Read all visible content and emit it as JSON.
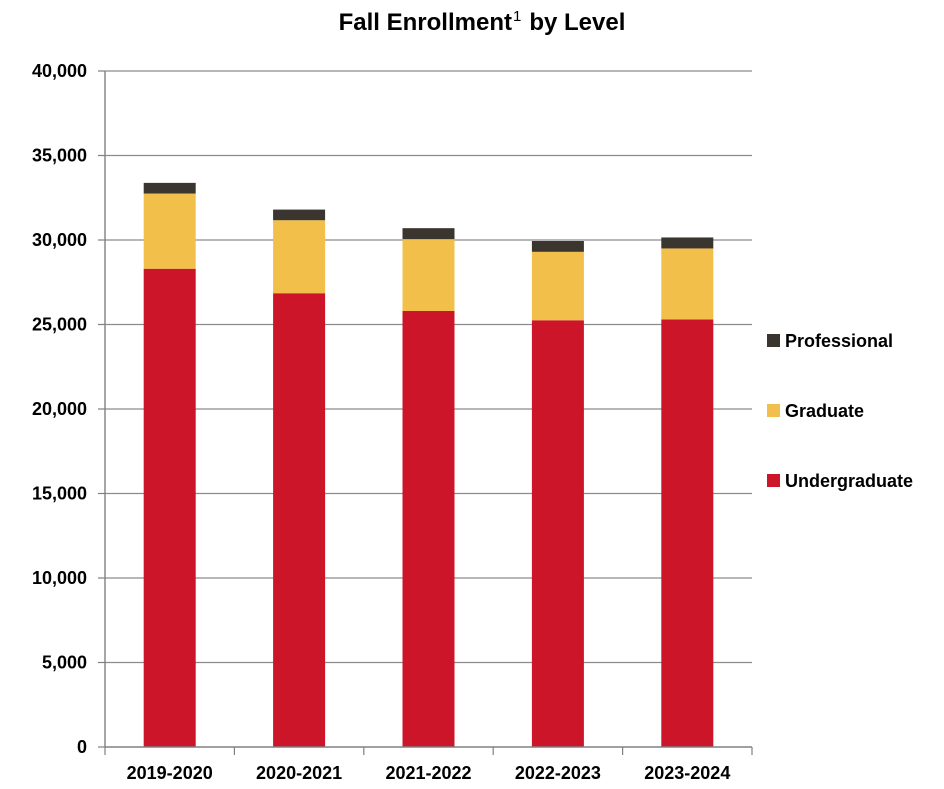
{
  "chart_data": {
    "type": "bar",
    "stacked": true,
    "title": "Fall Enrollment",
    "title_superscript": "1",
    "title_suffix": "by Level",
    "categories": [
      "2019-2020",
      "2020-2021",
      "2021-2022",
      "2022-2023",
      "2023-2024"
    ],
    "series": [
      {
        "name": "Undergraduate",
        "color": "#cc1528",
        "values": [
          28300,
          26850,
          25800,
          25250,
          25300
        ]
      },
      {
        "name": "Graduate",
        "color": "#f2c04a",
        "values": [
          4450,
          4320,
          4250,
          4050,
          4200
        ]
      },
      {
        "name": "Professional",
        "color": "#3b3530",
        "values": [
          630,
          630,
          650,
          640,
          650
        ]
      }
    ],
    "ylim": [
      0,
      40000
    ],
    "yticks": [
      "0",
      "5,000",
      "10,000",
      "15,000",
      "20,000",
      "25,000",
      "30,000",
      "35,000",
      "40,000"
    ],
    "grid": true,
    "legend": "right",
    "legend_order": [
      "Professional",
      "Graduate",
      "Undergraduate"
    ],
    "axis_color": "#808080",
    "grid_color": "#8c8c8c"
  }
}
